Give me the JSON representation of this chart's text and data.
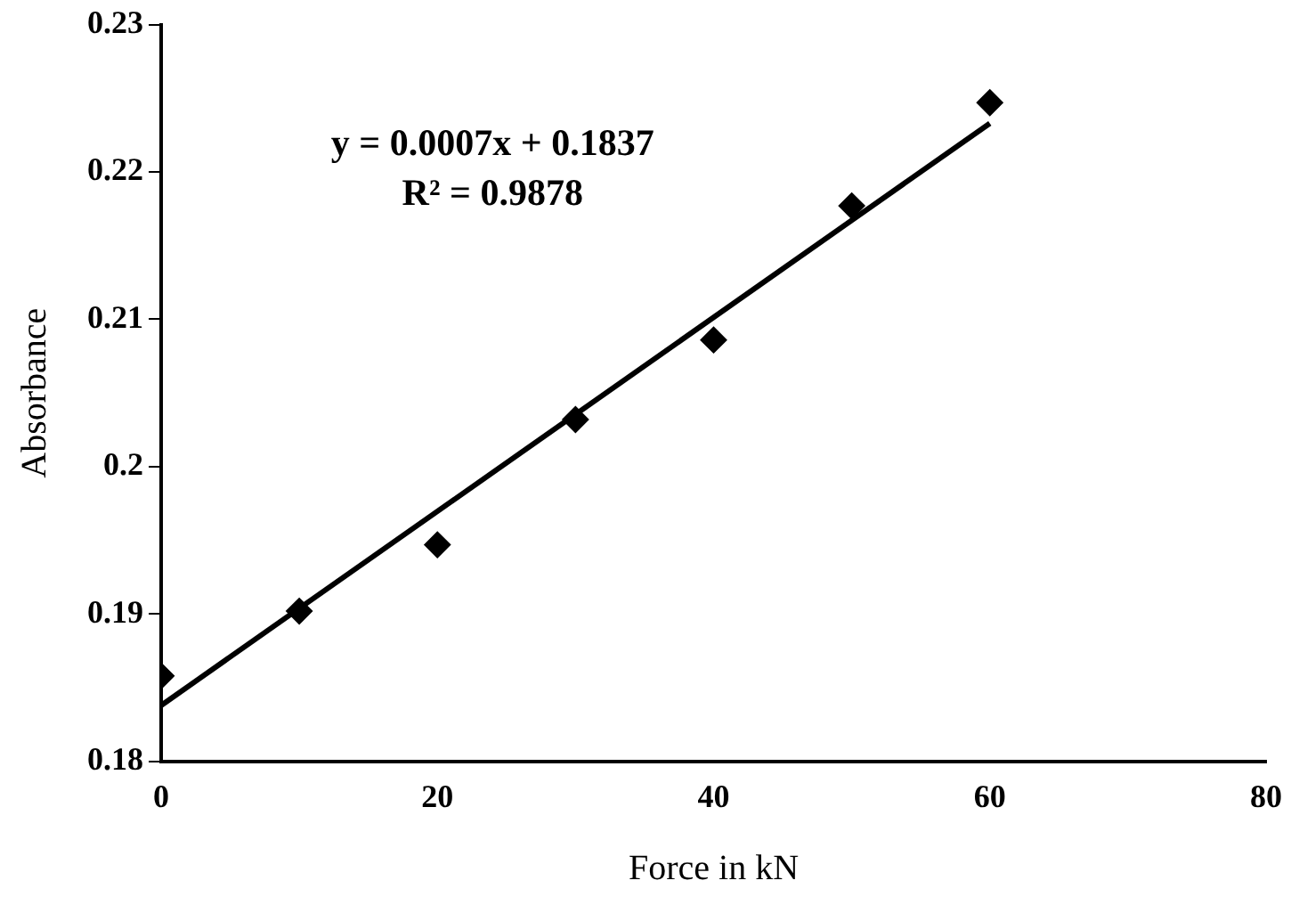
{
  "chart_data": {
    "type": "scatter",
    "xlabel": "Force in kN",
    "ylabel": "Absorbance",
    "x": [
      0,
      10,
      20,
      30,
      40,
      50,
      60
    ],
    "series": [
      {
        "color": "#000000",
        "marker": "diamond",
        "values": [
          0.1858,
          0.1902,
          0.1947,
          0.2032,
          0.2086,
          0.2177,
          0.2247
        ]
      },
      {
        "type": "line",
        "color": "#000000",
        "marker": "none",
        "line_style": "solid",
        "x": [
          0,
          60
        ],
        "values": [
          0.1838,
          0.2233
        ]
      }
    ],
    "xlim": [
      0,
      80
    ],
    "xticks": [
      0,
      20,
      40,
      60,
      80
    ],
    "ylim": [
      0.18,
      0.23
    ],
    "yticks": [
      0.18,
      0.19,
      0.2,
      0.21,
      0.22,
      0.23
    ],
    "grid": false,
    "legend": false,
    "annotations": [
      "y = 0.0007x + 0.1837",
      "R² = 0.9878"
    ]
  }
}
